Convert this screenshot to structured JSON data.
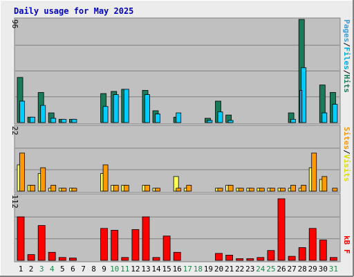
{
  "title": "Daily usage for May 2025",
  "colors": {
    "background": "#ececec",
    "plot_background": "#c0c0c0",
    "title": "#0000c0",
    "hits": "#1a7a5a",
    "files": "#00ccff",
    "pages": "#3a9ad6",
    "sites": "#ff9900",
    "visits": "#ffff55",
    "kbytes": "#ff0000",
    "weekend_label": "#1a8a4a",
    "weekday_label": "#000000"
  },
  "panels": {
    "top": {
      "ymax_label": "96",
      "legend": [
        "Pages",
        "Files",
        "Hits"
      ],
      "legend_sep": "/"
    },
    "middle": {
      "ymax_label": "22",
      "legend": [
        "Sites",
        "Visits"
      ],
      "legend_sep": "/"
    },
    "bottom": {
      "ymax_label": "112",
      "legend": [
        "kB F"
      ]
    }
  },
  "chart_data": {
    "type": "bar",
    "title": "Daily usage for May 2025",
    "categories": [
      "1",
      "2",
      "3",
      "4",
      "5",
      "6",
      "7",
      "8",
      "9",
      "10",
      "11",
      "12",
      "13",
      "14",
      "15",
      "16",
      "17",
      "18",
      "19",
      "20",
      "21",
      "22",
      "23",
      "24",
      "25",
      "26",
      "27",
      "28",
      "29",
      "30",
      "31"
    ],
    "weekend_days": [
      "3",
      "4",
      "10",
      "11",
      "17",
      "18",
      "24",
      "25",
      "31"
    ],
    "panels": [
      {
        "name": "hits-files-pages",
        "ylim": [
          0,
          96
        ],
        "series": [
          {
            "name": "Hits",
            "values": [
              42,
              5,
              28,
              9,
              3,
              3,
              0,
              0,
              27,
              29,
              31,
              0,
              30,
              11,
              0,
              5,
              0,
              0,
              4,
              20,
              7,
              0,
              0,
              0,
              0,
              0,
              9,
              96,
              0,
              35,
              28
            ]
          },
          {
            "name": "Files",
            "values": [
              20,
              5,
              16,
              4,
              3,
              3,
              0,
              0,
              15,
              26,
              31,
              0,
              26,
              8,
              0,
              9,
              0,
              0,
              2,
              10,
              2,
              0,
              0,
              0,
              0,
              0,
              3,
              51,
              0,
              9,
              17
            ]
          },
          {
            "name": "Pages",
            "values": [
              0,
              0,
              0,
              0,
              0,
              0,
              0,
              0,
              0,
              0,
              0,
              0,
              0,
              0,
              0,
              0,
              0,
              0,
              0,
              0,
              0,
              0,
              0,
              0,
              0,
              0,
              0,
              30,
              0,
              0,
              0
            ]
          }
        ]
      },
      {
        "name": "sites-visits",
        "ylim": [
          0,
          22
        ],
        "series": [
          {
            "name": "Visits",
            "values": [
              9,
              2,
              6,
              1,
              1,
              1,
              0,
              0,
              6,
              2,
              2,
              0,
              2,
              1,
              0,
              5,
              1,
              0,
              0,
              1,
              2,
              1,
              1,
              1,
              1,
              1,
              1,
              1,
              8,
              4,
              0
            ]
          },
          {
            "name": "Sites",
            "values": [
              13,
              2,
              8,
              2,
              1,
              1,
              0,
              0,
              9,
              2,
              2,
              0,
              2,
              1,
              0,
              1,
              2,
              0,
              0,
              1,
              2,
              1,
              1,
              1,
              1,
              1,
              2,
              2,
              13,
              5,
              1
            ]
          }
        ]
      },
      {
        "name": "kbytes",
        "ylim": [
          0,
          112
        ],
        "series": [
          {
            "name": "kB F",
            "values": [
              75,
              10,
              60,
              14,
              5,
              4,
              0,
              0,
              55,
              52,
              5,
              53,
              75,
              5,
              42,
              14,
              0,
              0,
              0,
              12,
              9,
              3,
              3,
              5,
              17,
              106,
              7,
              22,
              55,
              35,
              5
            ]
          }
        ]
      }
    ]
  }
}
